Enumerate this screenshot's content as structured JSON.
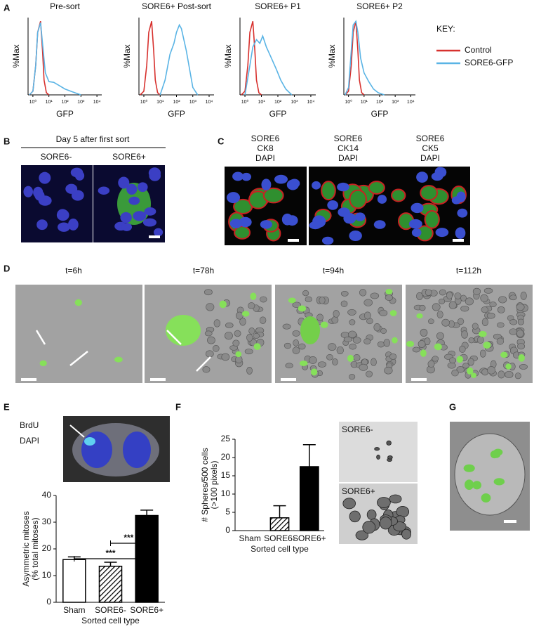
{
  "panel_labels": [
    "A",
    "B",
    "C",
    "D",
    "E",
    "F",
    "G"
  ],
  "key_title": "KEY:",
  "panel_b": {
    "header": "Day 5 after first sort",
    "labels": [
      "SORE6-",
      "SORE6+"
    ]
  },
  "panel_c": {
    "stains": [
      [
        "SORE6",
        "CK8",
        "DAPI"
      ],
      [
        "SORE6",
        "CK14",
        "DAPI"
      ],
      [
        "SORE6",
        "CK5",
        "DAPI"
      ]
    ]
  },
  "panel_d": {
    "times": [
      "t=6h",
      "t=78h",
      "t=94h",
      "t=112h"
    ]
  },
  "panel_e": {
    "stains": [
      "BrdU",
      "DAPI"
    ]
  },
  "panel_f": {
    "image_labels": [
      "SORE6-",
      "SORE6+"
    ]
  },
  "chart_data": [
    {
      "type": "line",
      "title": "Pre-sort",
      "ylabel": "%Max",
      "xlabel": "GFP",
      "xscale": "log",
      "xlim": [
        0.5,
        20000
      ],
      "ylim": [
        0,
        105
      ],
      "xticks": [
        {
          "value": 1,
          "label": "10⁰"
        },
        {
          "value": 10,
          "label": "10¹"
        },
        {
          "value": 100,
          "label": "10²"
        },
        {
          "value": 1000,
          "label": "10³"
        },
        {
          "value": 10000,
          "label": "10⁴"
        }
      ],
      "series": [
        {
          "name": "Control",
          "color": "#d7312e",
          "x": [
            0.6,
            1,
            1.5,
            2,
            3,
            4,
            5,
            7,
            10
          ],
          "values": [
            0,
            5,
            40,
            85,
            100,
            60,
            20,
            3,
            0
          ]
        },
        {
          "name": "SORE6-GFP",
          "color": "#5ab4e5",
          "x": [
            0.6,
            1,
            1.5,
            2,
            3,
            4,
            6,
            10,
            20,
            50,
            100,
            300,
            1000
          ],
          "values": [
            0,
            5,
            40,
            85,
            98,
            70,
            30,
            18,
            17,
            12,
            8,
            4,
            0
          ]
        }
      ]
    },
    {
      "type": "line",
      "title": "SORE6+ Post-sort",
      "ylabel": "%Max",
      "xlabel": "GFP",
      "xscale": "log",
      "xlim": [
        0.5,
        20000
      ],
      "ylim": [
        0,
        105
      ],
      "xticks": [
        {
          "value": 1,
          "label": "10⁰"
        },
        {
          "value": 10,
          "label": "10¹"
        },
        {
          "value": 100,
          "label": "10²"
        },
        {
          "value": 1000,
          "label": "10³"
        },
        {
          "value": 10000,
          "label": "10⁴"
        }
      ],
      "series": [
        {
          "name": "Control",
          "color": "#d7312e",
          "x": [
            0.6,
            1,
            1.5,
            2,
            3,
            4,
            5,
            7,
            10
          ],
          "values": [
            0,
            5,
            40,
            85,
            100,
            60,
            20,
            3,
            0
          ]
        },
        {
          "name": "SORE6-GFP",
          "color": "#5ab4e5",
          "x": [
            10,
            20,
            40,
            70,
            100,
            150,
            200,
            400,
            700,
            1000,
            2000
          ],
          "values": [
            0,
            20,
            55,
            70,
            85,
            95,
            90,
            60,
            30,
            10,
            0
          ]
        }
      ]
    },
    {
      "type": "line",
      "title": "SORE6+ P1",
      "ylabel": "%Max",
      "xlabel": "GFP",
      "xscale": "log",
      "xlim": [
        0.5,
        20000
      ],
      "ylim": [
        0,
        105
      ],
      "xticks": [
        {
          "value": 1,
          "label": "10⁰"
        },
        {
          "value": 10,
          "label": "10¹"
        },
        {
          "value": 100,
          "label": "10²"
        },
        {
          "value": 1000,
          "label": "10³"
        },
        {
          "value": 10000,
          "label": "10⁴"
        }
      ],
      "series": [
        {
          "name": "Control",
          "color": "#d7312e",
          "x": [
            0.6,
            1,
            1.5,
            2,
            3,
            4,
            5,
            7,
            10
          ],
          "values": [
            0,
            5,
            40,
            85,
            100,
            60,
            20,
            3,
            0
          ]
        },
        {
          "name": "SORE6-GFP",
          "color": "#5ab4e5",
          "x": [
            1,
            2,
            3,
            5,
            8,
            12,
            20,
            40,
            80,
            150,
            300,
            700
          ],
          "values": [
            0,
            40,
            65,
            75,
            70,
            80,
            65,
            50,
            35,
            20,
            8,
            0
          ]
        }
      ]
    },
    {
      "type": "line",
      "title": "SORE6+ P2",
      "ylabel": "%Max",
      "xlabel": "GFP",
      "xscale": "log",
      "xlim": [
        0.5,
        20000
      ],
      "ylim": [
        0,
        105
      ],
      "xticks": [
        {
          "value": 1,
          "label": "10⁰"
        },
        {
          "value": 10,
          "label": "10¹"
        },
        {
          "value": 100,
          "label": "10²"
        },
        {
          "value": 1000,
          "label": "10³"
        },
        {
          "value": 10000,
          "label": "10⁴"
        }
      ],
      "series": [
        {
          "name": "Control",
          "color": "#d7312e",
          "x": [
            0.6,
            1,
            1.5,
            2,
            3,
            4,
            5,
            7,
            10
          ],
          "values": [
            0,
            5,
            40,
            85,
            100,
            60,
            20,
            3,
            0
          ]
        },
        {
          "name": "SORE6-GFP",
          "color": "#5ab4e5",
          "x": [
            0.6,
            1,
            1.5,
            2,
            3,
            4,
            6,
            10,
            20,
            40,
            80,
            200
          ],
          "values": [
            0,
            10,
            60,
            95,
            100,
            85,
            50,
            30,
            18,
            8,
            3,
            0
          ]
        }
      ]
    },
    {
      "type": "bar",
      "ylabel": [
        "Asymmetric mitoses",
        "(% total mitoses)"
      ],
      "xlabel": "Sorted cell type",
      "categories": [
        "Sham",
        "SORE6-",
        "SORE6+"
      ],
      "values": [
        16,
        13.5,
        32.5
      ],
      "errors": [
        1,
        1.5,
        2
      ],
      "fills": [
        "white",
        "hatched",
        "black"
      ],
      "ylim": [
        0,
        40
      ],
      "yticks": [
        0,
        10,
        20,
        30,
        40
      ],
      "significance": [
        {
          "label": "***",
          "from": 1,
          "to": 2
        },
        {
          "label": "***",
          "from": 0,
          "to": 2
        }
      ]
    },
    {
      "type": "bar",
      "ylabel": [
        "# Spheres/500 cells",
        "(>100 pixels)"
      ],
      "xlabel": "Sorted cell type",
      "categories": [
        "Sham",
        "SORE6-",
        "SORE6+"
      ],
      "values": [
        0,
        3.5,
        17.5
      ],
      "errors": [
        0,
        3.3,
        6
      ],
      "fills": [
        "white",
        "hatched",
        "black"
      ],
      "ylim": [
        0,
        25
      ],
      "yticks": [
        0,
        5,
        10,
        15,
        20,
        25
      ]
    }
  ]
}
